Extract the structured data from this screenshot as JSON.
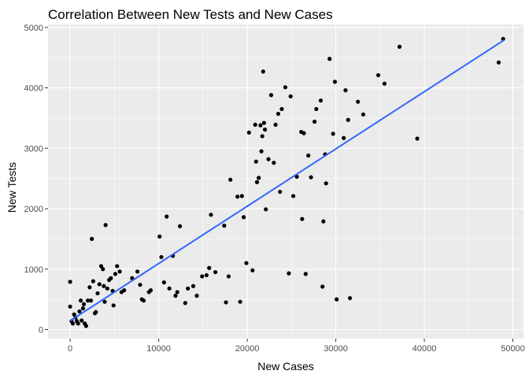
{
  "chart_data": {
    "type": "scatter",
    "title": "Correlation Between New Tests and New Cases",
    "xlabel": "New Cases",
    "ylabel": "New Tests",
    "xlim": [
      -2500,
      51200
    ],
    "ylim": [
      -150,
      5050
    ],
    "x_ticks": [
      0,
      10000,
      20000,
      30000,
      40000,
      50000
    ],
    "y_ticks": [
      0,
      1000,
      2000,
      3000,
      4000,
      5000
    ],
    "x_tick_labels": [
      "0",
      "10000",
      "20000",
      "30000",
      "40000",
      "50000"
    ],
    "y_tick_labels": [
      "0",
      "1000",
      "2000",
      "3000",
      "4000",
      "5000"
    ],
    "grid": true,
    "background_color": "#ebebeb",
    "grid_color": "#ffffff",
    "point_color": "#000000",
    "trend_color": "#3366ff",
    "trend_line": {
      "x": [
        0,
        49000
      ],
      "y": [
        145,
        4790
      ]
    },
    "points": [
      {
        "x": 0,
        "y": 790
      },
      {
        "x": 0,
        "y": 380
      },
      {
        "x": 150,
        "y": 140
      },
      {
        "x": 300,
        "y": 100
      },
      {
        "x": 450,
        "y": 250
      },
      {
        "x": 600,
        "y": 200
      },
      {
        "x": 750,
        "y": 140
      },
      {
        "x": 900,
        "y": 100
      },
      {
        "x": 1050,
        "y": 300
      },
      {
        "x": 1200,
        "y": 480
      },
      {
        "x": 1300,
        "y": 150
      },
      {
        "x": 1450,
        "y": 350
      },
      {
        "x": 1550,
        "y": 420
      },
      {
        "x": 1650,
        "y": 100
      },
      {
        "x": 1800,
        "y": 60
      },
      {
        "x": 2000,
        "y": 480
      },
      {
        "x": 2200,
        "y": 700
      },
      {
        "x": 2350,
        "y": 480
      },
      {
        "x": 2450,
        "y": 1500
      },
      {
        "x": 2600,
        "y": 800
      },
      {
        "x": 2800,
        "y": 270
      },
      {
        "x": 2900,
        "y": 290
      },
      {
        "x": 3100,
        "y": 600
      },
      {
        "x": 3300,
        "y": 750
      },
      {
        "x": 3500,
        "y": 1050
      },
      {
        "x": 3700,
        "y": 1000
      },
      {
        "x": 3800,
        "y": 720
      },
      {
        "x": 3900,
        "y": 460
      },
      {
        "x": 4000,
        "y": 1730
      },
      {
        "x": 4200,
        "y": 680
      },
      {
        "x": 4400,
        "y": 820
      },
      {
        "x": 4600,
        "y": 850
      },
      {
        "x": 4800,
        "y": 640
      },
      {
        "x": 4900,
        "y": 400
      },
      {
        "x": 5100,
        "y": 920
      },
      {
        "x": 5300,
        "y": 1050
      },
      {
        "x": 5600,
        "y": 960
      },
      {
        "x": 5800,
        "y": 620
      },
      {
        "x": 6100,
        "y": 650
      },
      {
        "x": 7000,
        "y": 850
      },
      {
        "x": 7600,
        "y": 960
      },
      {
        "x": 7900,
        "y": 740
      },
      {
        "x": 8100,
        "y": 500
      },
      {
        "x": 8300,
        "y": 480
      },
      {
        "x": 8900,
        "y": 620
      },
      {
        "x": 9100,
        "y": 650
      },
      {
        "x": 10100,
        "y": 1540
      },
      {
        "x": 10300,
        "y": 1200
      },
      {
        "x": 10600,
        "y": 780
      },
      {
        "x": 10900,
        "y": 1870
      },
      {
        "x": 11200,
        "y": 680
      },
      {
        "x": 11600,
        "y": 1220
      },
      {
        "x": 11900,
        "y": 560
      },
      {
        "x": 12100,
        "y": 620
      },
      {
        "x": 12400,
        "y": 1710
      },
      {
        "x": 13000,
        "y": 440
      },
      {
        "x": 13300,
        "y": 680
      },
      {
        "x": 13900,
        "y": 720
      },
      {
        "x": 14300,
        "y": 560
      },
      {
        "x": 14900,
        "y": 880
      },
      {
        "x": 15400,
        "y": 900
      },
      {
        "x": 15700,
        "y": 1020
      },
      {
        "x": 15900,
        "y": 1900
      },
      {
        "x": 16400,
        "y": 950
      },
      {
        "x": 17400,
        "y": 1720
      },
      {
        "x": 17600,
        "y": 450
      },
      {
        "x": 17900,
        "y": 880
      },
      {
        "x": 18100,
        "y": 2480
      },
      {
        "x": 18900,
        "y": 2200
      },
      {
        "x": 19200,
        "y": 460
      },
      {
        "x": 19400,
        "y": 2210
      },
      {
        "x": 19600,
        "y": 1860
      },
      {
        "x": 19900,
        "y": 1100
      },
      {
        "x": 20200,
        "y": 3260
      },
      {
        "x": 20600,
        "y": 980
      },
      {
        "x": 20900,
        "y": 3390
      },
      {
        "x": 21000,
        "y": 2780
      },
      {
        "x": 21100,
        "y": 2440
      },
      {
        "x": 21300,
        "y": 2510
      },
      {
        "x": 21500,
        "y": 3380
      },
      {
        "x": 21600,
        "y": 2950
      },
      {
        "x": 21700,
        "y": 3200
      },
      {
        "x": 21800,
        "y": 4270
      },
      {
        "x": 21900,
        "y": 3420
      },
      {
        "x": 22000,
        "y": 3310
      },
      {
        "x": 22100,
        "y": 1990
      },
      {
        "x": 22400,
        "y": 2820
      },
      {
        "x": 22700,
        "y": 3880
      },
      {
        "x": 23000,
        "y": 2760
      },
      {
        "x": 23200,
        "y": 3390
      },
      {
        "x": 23500,
        "y": 3570
      },
      {
        "x": 23700,
        "y": 2280
      },
      {
        "x": 23900,
        "y": 3650
      },
      {
        "x": 24300,
        "y": 4010
      },
      {
        "x": 24700,
        "y": 930
      },
      {
        "x": 24900,
        "y": 3860
      },
      {
        "x": 25200,
        "y": 2210
      },
      {
        "x": 25600,
        "y": 2530
      },
      {
        "x": 26100,
        "y": 3270
      },
      {
        "x": 26200,
        "y": 1830
      },
      {
        "x": 26400,
        "y": 3250
      },
      {
        "x": 26600,
        "y": 920
      },
      {
        "x": 26900,
        "y": 2880
      },
      {
        "x": 27200,
        "y": 2520
      },
      {
        "x": 27600,
        "y": 3440
      },
      {
        "x": 27800,
        "y": 3650
      },
      {
        "x": 28300,
        "y": 3790
      },
      {
        "x": 28500,
        "y": 710
      },
      {
        "x": 28600,
        "y": 1790
      },
      {
        "x": 28800,
        "y": 2900
      },
      {
        "x": 28900,
        "y": 2420
      },
      {
        "x": 29300,
        "y": 4480
      },
      {
        "x": 29700,
        "y": 3240
      },
      {
        "x": 29900,
        "y": 4100
      },
      {
        "x": 30100,
        "y": 500
      },
      {
        "x": 30900,
        "y": 3170
      },
      {
        "x": 31100,
        "y": 3960
      },
      {
        "x": 31400,
        "y": 3470
      },
      {
        "x": 31600,
        "y": 520
      },
      {
        "x": 32500,
        "y": 3770
      },
      {
        "x": 33100,
        "y": 3560
      },
      {
        "x": 34800,
        "y": 4210
      },
      {
        "x": 35500,
        "y": 4070
      },
      {
        "x": 37200,
        "y": 4680
      },
      {
        "x": 39200,
        "y": 3160
      },
      {
        "x": 48400,
        "y": 4420
      },
      {
        "x": 48900,
        "y": 4810
      }
    ]
  }
}
